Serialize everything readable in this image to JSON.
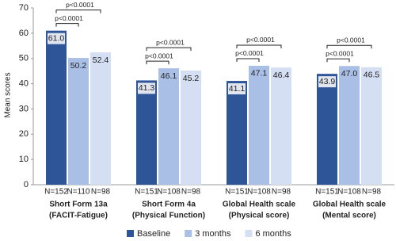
{
  "chart_data": {
    "type": "bar",
    "y_label": "Mean scores",
    "categories": [
      [
        "Short Form 13a",
        "(FACIT-Fatigue)"
      ],
      [
        "Short Form 4a",
        "(Physical Function)"
      ],
      [
        "Global Health scale",
        "(Physical score)"
      ],
      [
        "Global Health scale",
        "(Mental score)"
      ]
    ],
    "series": [
      {
        "name": "Baseline",
        "color": "#2e5597",
        "values": [
          61.0,
          41.3,
          41.1,
          43.9
        ],
        "value_labels": [
          "61.0",
          "41.3",
          "41.1",
          "43.9"
        ],
        "n_labels": [
          "N=152",
          "N=151",
          "N=151",
          "N=151"
        ]
      },
      {
        "name": "3 months",
        "color": "#a9bfe6",
        "values": [
          50.2,
          46.1,
          47.1,
          47.0
        ],
        "value_labels": [
          "50.2",
          "46.1",
          "47.1",
          "47.0"
        ],
        "n_labels": [
          "N=110",
          "N=108",
          "N=108",
          "N=108"
        ]
      },
      {
        "name": "6 months",
        "color": "#d4dff3",
        "values": [
          52.4,
          45.2,
          46.4,
          46.5
        ],
        "value_labels": [
          "52.4",
          "45.2",
          "46.4",
          "46.5"
        ],
        "n_labels": [
          "N=98",
          "N=98",
          "N=98",
          "N=98"
        ]
      }
    ],
    "comparisons": [
      [
        "p<0.0001",
        "p<0.0001"
      ],
      [
        "p<0.0001",
        "p<0.0001"
      ],
      [
        "p<0.0001",
        "p<0.0001"
      ],
      [
        "p<0.0001",
        "p<0.0001"
      ]
    ],
    "ylim": [
      0,
      70
    ],
    "yticks": [
      0,
      10,
      20,
      30,
      40,
      50,
      60,
      70
    ],
    "grid": false,
    "legend": "bottom"
  }
}
